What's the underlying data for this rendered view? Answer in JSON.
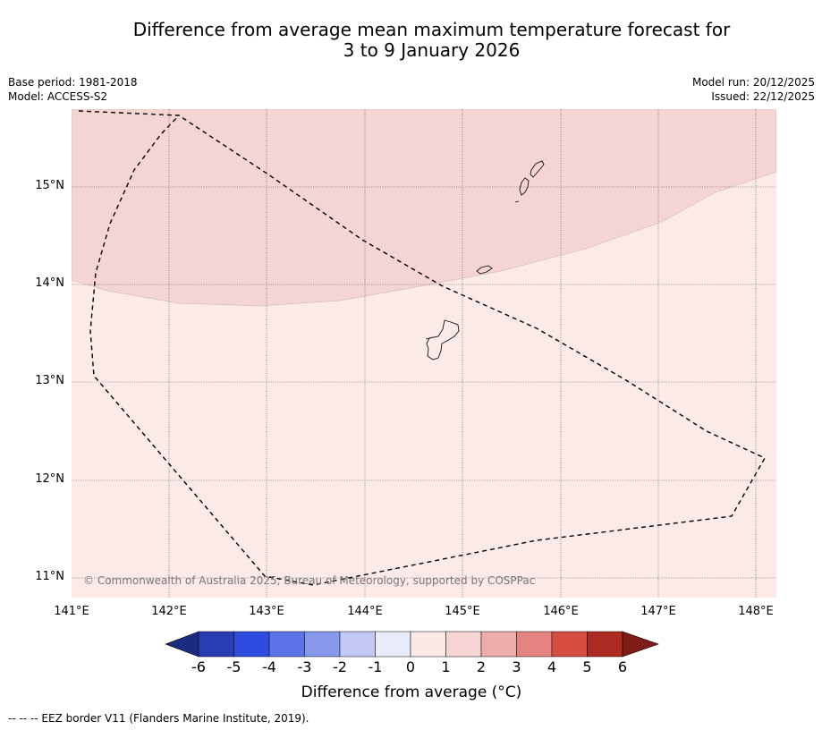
{
  "title_line1": "Difference from average mean maximum temperature forecast for",
  "title_line2": "3 to 9 January 2026",
  "base_period": "Base period: 1981-2018",
  "model": "Model: ACCESS-S2",
  "model_run": "Model run: 20/12/2025",
  "issued": "Issued: 22/12/2025",
  "copyright": "© Commonwealth of Australia 2025, Bureau of Meteorology, supported by COSPPac",
  "lat_labels": [
    "15°N",
    "14°N",
    "13°N",
    "12°N",
    "11°N"
  ],
  "lon_labels": [
    "141°E",
    "142°E",
    "143°E",
    "144°E",
    "145°E",
    "146°E",
    "147°E",
    "148°E"
  ],
  "colorbar": {
    "ticks": [
      "-6",
      "-5",
      "-4",
      "-3",
      "-2",
      "-1",
      "0",
      "1",
      "2",
      "3",
      "4",
      "5",
      "6"
    ],
    "colors": [
      "#1c2b7f",
      "#2a3db4",
      "#2f4ce0",
      "#5b73e6",
      "#8797ea",
      "#c2c8f3",
      "#e9ecfb",
      "#fbe9e8",
      "#f6d5d4",
      "#edaeab",
      "#e4837f",
      "#d84b40",
      "#ad2a22",
      "#7e1c18"
    ],
    "label": "Difference from average (°C)"
  },
  "footer": "-- -- -- EEZ border V11 (Flanders Marine Institute, 2019).",
  "colors": {
    "anomaly_1_2": "#f5d5d3",
    "anomaly_0_1": "#fbeae8",
    "grid": "#555555"
  }
}
